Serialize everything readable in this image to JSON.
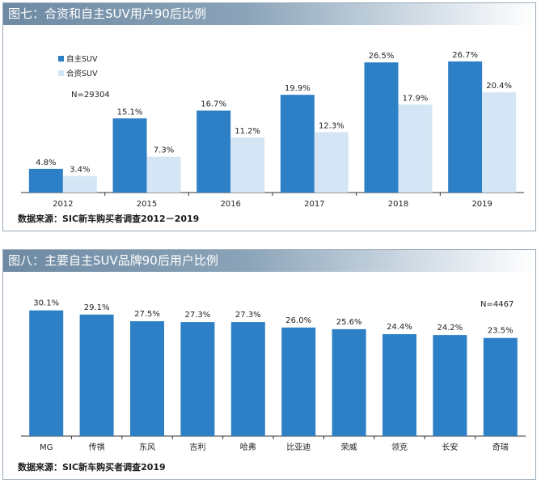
{
  "panel1": {
    "title": "图七：合资和自主SUV用户90后比例",
    "source": "数据来源：SIC新车购买者调查2012－2019"
  },
  "panel2": {
    "title": "图八：主要自主SUV品牌90后用户比例",
    "source": "数据来源：SIC新车购买者调查2019"
  },
  "colors": {
    "series_dark": "#2e80c6",
    "series_light": "#d4e6f5",
    "axis": "#333333"
  },
  "chart_data": [
    {
      "type": "bar",
      "categories": [
        "2012",
        "2015",
        "2016",
        "2017",
        "2018",
        "2019"
      ],
      "series": [
        {
          "name": "自主SUV",
          "values": [
            4.8,
            15.1,
            16.7,
            19.9,
            26.5,
            26.7
          ],
          "labels": [
            "4.8%",
            "15.1%",
            "16.7%",
            "19.9%",
            "26.5%",
            "26.7%"
          ]
        },
        {
          "name": "合资SUV",
          "values": [
            3.4,
            7.3,
            11.2,
            12.3,
            17.9,
            20.4
          ],
          "labels": [
            "3.4%",
            "7.3%",
            "11.2%",
            "12.3%",
            "17.9%",
            "20.4%"
          ]
        }
      ],
      "annotation": "N=29304",
      "ylim": [
        0,
        28
      ],
      "legend": "top-left",
      "grid": false
    },
    {
      "type": "bar",
      "categories": [
        "MG",
        "传祺",
        "东风",
        "吉利",
        "哈弗",
        "比亚迪",
        "荣威",
        "领克",
        "长安",
        "奇瑞"
      ],
      "values": [
        30.1,
        29.1,
        27.5,
        27.3,
        27.3,
        26.0,
        25.6,
        24.4,
        24.2,
        23.5
      ],
      "labels": [
        "30.1%",
        "29.1%",
        "27.5%",
        "27.3%",
        "27.3%",
        "26.0%",
        "25.6%",
        "24.4%",
        "24.2%",
        "23.5%"
      ],
      "annotation": "N=4467",
      "ylim": [
        0,
        31
      ],
      "grid": false
    }
  ]
}
